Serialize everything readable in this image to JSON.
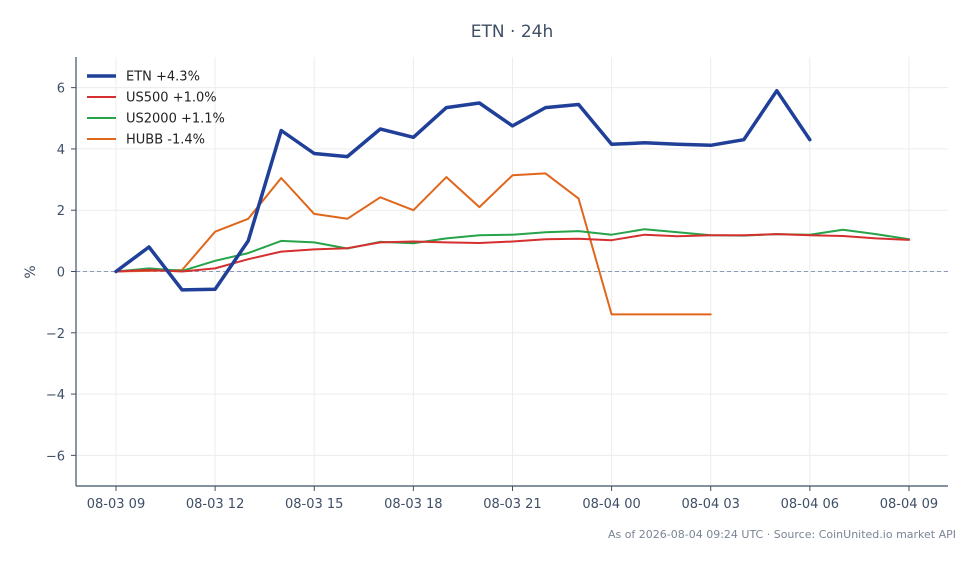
{
  "chart_data": {
    "type": "line",
    "title": "ETN · 24h",
    "ylabel": "%",
    "xlabel": "",
    "x_tick_labels": [
      "08-03 09",
      "08-03 12",
      "08-03 15",
      "08-03 18",
      "08-03 21",
      "08-04 00",
      "08-04 03",
      "08-04 06",
      "08-04 09"
    ],
    "y_tick_labels": [
      "−6",
      "−4",
      "−2",
      "0",
      "2",
      "4",
      "6"
    ],
    "y_ticks": [
      -6,
      -4,
      -2,
      0,
      2,
      4,
      6
    ],
    "ylim": [
      -7,
      7
    ],
    "x_time_labels": [
      "08-03 09:00",
      "08-03 10:00",
      "08-03 11:00",
      "08-03 12:00",
      "08-03 13:00",
      "08-03 14:00",
      "08-03 15:00",
      "08-03 16:00",
      "08-03 17:00",
      "08-03 18:00",
      "08-03 19:00",
      "08-03 20:00",
      "08-03 21:00",
      "08-03 22:00",
      "08-03 23:00",
      "08-04 00:00",
      "08-04 01:00",
      "08-04 02:00",
      "08-04 03:00",
      "08-04 04:00",
      "08-04 05:00",
      "08-04 06:00",
      "08-04 07:00",
      "08-04 08:00",
      "08-04 09:00"
    ],
    "grid": true,
    "zero_line": true,
    "legend_position": "top-left",
    "series": [
      {
        "name": "ETN +4.3%",
        "color": "#1f3f99",
        "width": 3.5,
        "values": [
          0.0,
          0.8,
          -0.6,
          -0.58,
          1.0,
          4.6,
          3.85,
          3.75,
          4.65,
          4.38,
          5.35,
          5.5,
          4.75,
          5.35,
          5.45,
          4.15,
          4.2,
          4.15,
          4.12,
          4.3,
          5.9,
          4.3,
          null,
          null,
          null
        ]
      },
      {
        "name": "US500 +1.0%",
        "color": "#d62f2f",
        "width": 2,
        "values": [
          0.0,
          0.05,
          0.0,
          0.1,
          0.4,
          0.65,
          0.72,
          0.76,
          0.95,
          0.98,
          0.95,
          0.93,
          0.98,
          1.05,
          1.07,
          1.02,
          1.2,
          1.15,
          1.18,
          1.18,
          1.22,
          1.18,
          1.16,
          1.08,
          1.03
        ]
      },
      {
        "name": "US2000 +1.1%",
        "color": "#27a34a",
        "width": 2,
        "values": [
          0.0,
          0.1,
          0.02,
          0.35,
          0.6,
          1.0,
          0.95,
          0.75,
          0.97,
          0.92,
          1.08,
          1.18,
          1.2,
          1.28,
          1.32,
          1.2,
          1.38,
          1.28,
          1.18,
          1.17,
          1.22,
          1.2,
          1.36,
          1.22,
          1.05
        ]
      },
      {
        "name": "HUBB -1.4%",
        "color": "#e0661c",
        "width": 2,
        "values": [
          0.0,
          0.02,
          0.05,
          1.3,
          1.72,
          3.05,
          1.88,
          1.72,
          2.42,
          2.0,
          3.08,
          2.1,
          3.14,
          3.2,
          2.38,
          -1.4,
          -1.4,
          -1.4,
          -1.4,
          null,
          null,
          null,
          null,
          null,
          null
        ]
      }
    ],
    "footer": "As of 2026-08-04 09:24 UTC · Source: CoinUnited.io market API"
  }
}
